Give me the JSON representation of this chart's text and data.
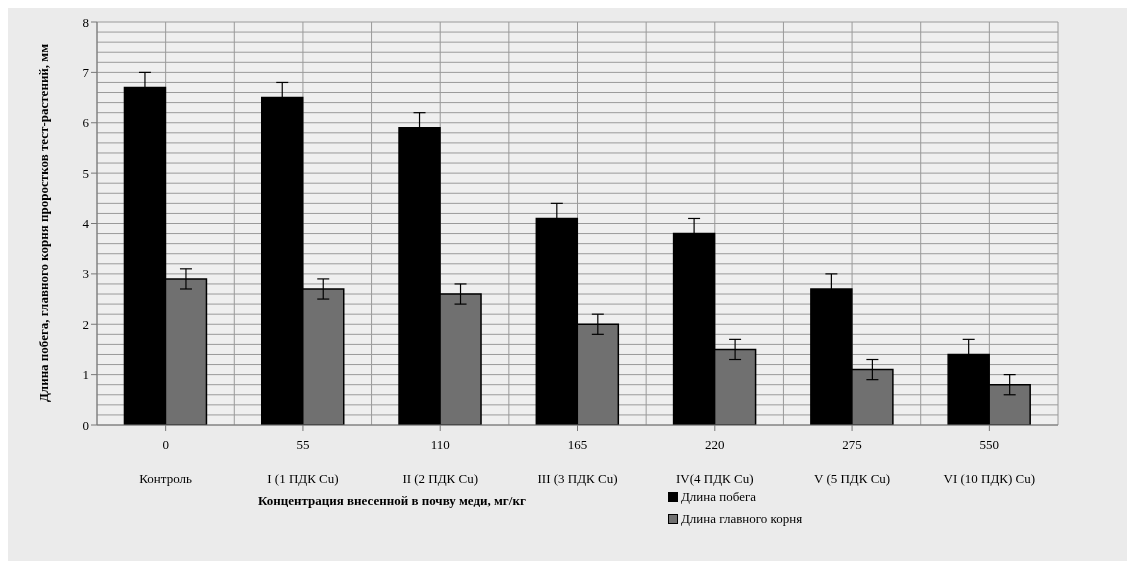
{
  "chart_data": {
    "type": "bar",
    "xlabel": "Концентрация внесенной в почву меди, мг/кг",
    "ylabel": "Длина побега, главного корня проростков тест-растений, мм",
    "categories": [
      "0\nКонтроль",
      "55\nI (1  ПДК Cu)",
      "110\nII (2 ПДК Cu)",
      "165\nIII (3 ПДК Cu)",
      "220\nIV(4 ПДК Cu)",
      "275\nV (5 ПДК Cu)",
      "550\nVI (10 ПДК) Cu)"
    ],
    "series": [
      {
        "name": "Длина побега",
        "color": "#000000",
        "values": [
          6.7,
          6.5,
          5.9,
          4.1,
          3.8,
          2.7,
          1.4
        ],
        "errors": [
          0.3,
          0.3,
          0.3,
          0.3,
          0.3,
          0.3,
          0.3
        ]
      },
      {
        "name": "Длина главного корня",
        "color": "#707070",
        "values": [
          2.9,
          2.7,
          2.6,
          2.0,
          1.5,
          1.1,
          0.8
        ],
        "errors": [
          0.2,
          0.2,
          0.2,
          0.2,
          0.2,
          0.2,
          0.2
        ]
      }
    ],
    "ylim": [
      0,
      8
    ],
    "yticks": [
      0,
      1,
      2,
      3,
      4,
      5,
      6,
      7,
      8
    ],
    "grid": true,
    "legend": "bottom"
  }
}
